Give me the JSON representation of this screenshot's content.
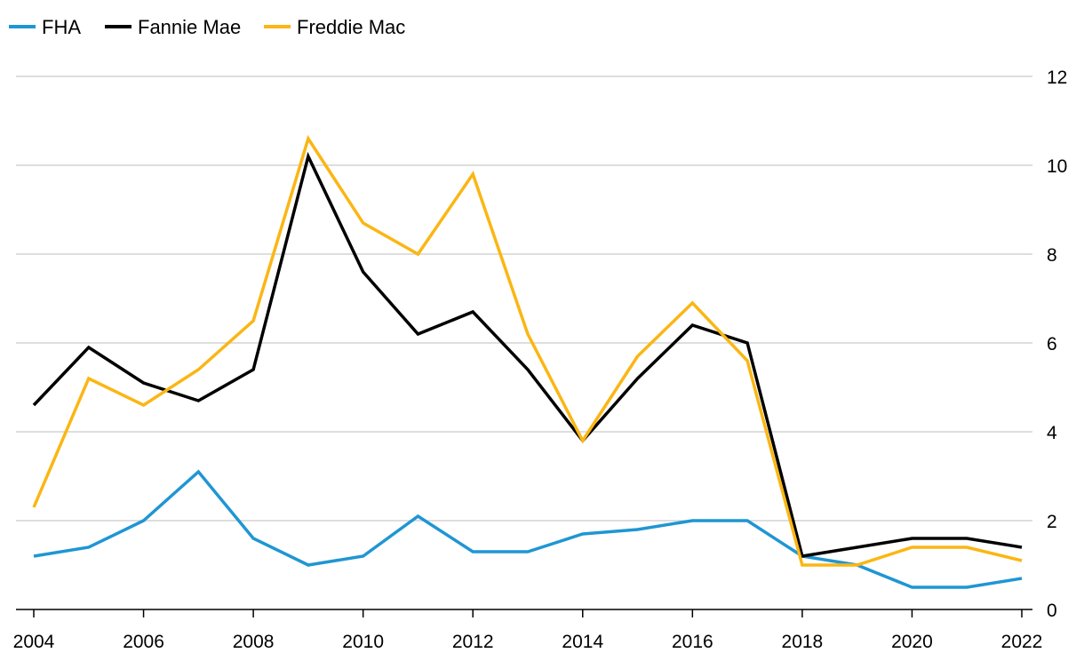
{
  "chart_data": {
    "type": "line",
    "title": "",
    "xlabel": "",
    "ylabel": "",
    "legend_position": "top-left",
    "grid": true,
    "y_axis_side": "right",
    "xlim": [
      2004,
      2022
    ],
    "ylim": [
      0,
      12
    ],
    "x_ticks": [
      "2004",
      "2006",
      "2008",
      "2010",
      "2012",
      "2014",
      "2016",
      "2018",
      "2020",
      "2022"
    ],
    "y_ticks": [
      "0",
      "2",
      "4",
      "6",
      "8",
      "10",
      "12"
    ],
    "x": [
      2004,
      2005,
      2006,
      2007,
      2008,
      2009,
      2010,
      2011,
      2012,
      2013,
      2014,
      2015,
      2016,
      2017,
      2018,
      2019,
      2020,
      2021,
      2022
    ],
    "series": [
      {
        "name": "FHA",
        "color": "#1f96d3",
        "values": [
          1.2,
          1.4,
          2.0,
          3.1,
          1.6,
          1.0,
          1.2,
          2.1,
          1.3,
          1.3,
          1.7,
          1.8,
          2.0,
          2.0,
          1.2,
          1.0,
          0.5,
          0.5,
          0.7
        ]
      },
      {
        "name": "Fannie Mae",
        "color": "#000000",
        "values": [
          4.6,
          5.9,
          5.1,
          4.7,
          5.4,
          10.2,
          7.6,
          6.2,
          6.7,
          5.4,
          3.8,
          5.2,
          6.4,
          6.0,
          1.2,
          1.4,
          1.6,
          1.6,
          1.4
        ]
      },
      {
        "name": "Freddie Mac",
        "color": "#fbb614",
        "values": [
          2.3,
          5.2,
          4.6,
          5.4,
          6.5,
          10.6,
          8.7,
          8.0,
          9.8,
          6.2,
          3.8,
          5.7,
          6.9,
          5.6,
          1.0,
          1.0,
          1.4,
          1.4,
          1.1
        ]
      }
    ]
  }
}
